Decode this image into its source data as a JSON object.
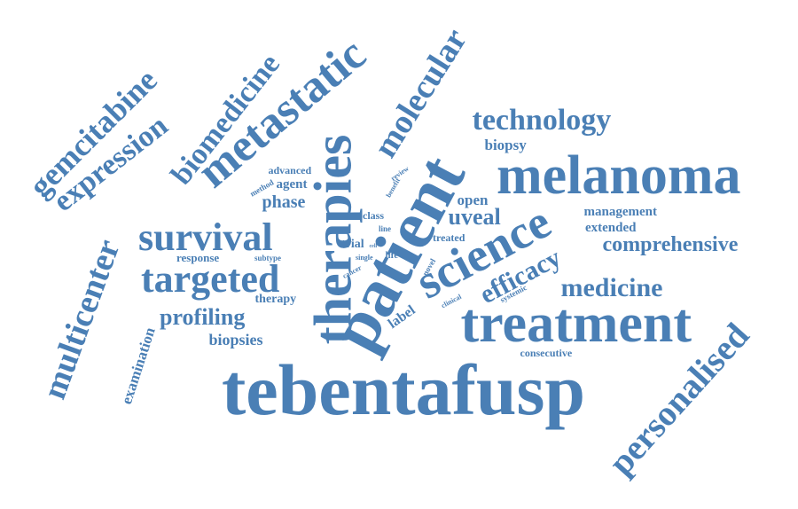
{
  "colors": {
    "word": "#4a7fb5",
    "background": "#ffffff"
  },
  "words": [
    "tebentafusp",
    "patient",
    "treatment",
    "melanoma",
    "therapies",
    "science",
    "metastatic",
    "survival",
    "targeted",
    "personalised",
    "multicenter",
    "molecular",
    "gemcitabine",
    "expression",
    "biomedicine",
    "technology",
    "medicine",
    "efficacy",
    "comprehensive",
    "uveal",
    "profiling",
    "biopsies",
    "examination",
    "management",
    "extended",
    "biopsy",
    "phase",
    "consecutive",
    "open",
    "label",
    "therapy",
    "response",
    "agent",
    "advanced",
    "treated",
    "trial",
    "class",
    "subtype",
    "method",
    "review",
    "benefit",
    "life",
    "line",
    "single",
    "novel",
    "systemic",
    "clinical",
    "cancer",
    "cell",
    "brca"
  ]
}
